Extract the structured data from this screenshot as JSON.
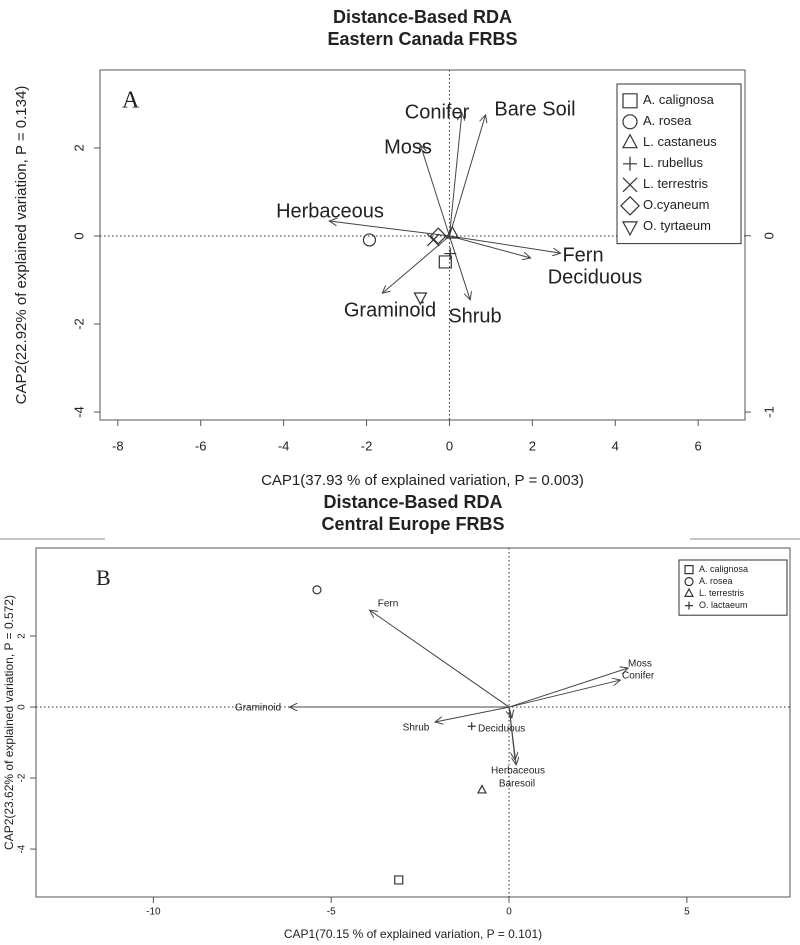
{
  "chart_data": [
    {
      "type": "biplot",
      "title": "Distance-Based RDA",
      "subtitle": "Eastern Canada FRBS",
      "panel": "A",
      "xlabel": "CAP1(37.93 % of explained variation, P = 0.003)",
      "ylabel": "CAP2(22.92% of explained variation, P = 0.134)",
      "xlim": [
        -8.43,
        7.13
      ],
      "ylim": [
        -4.18,
        3.77
      ],
      "y2lim": [
        -1.045,
        0.94
      ],
      "xticks": [
        -8,
        -6,
        -4,
        -2,
        0,
        2,
        4,
        6
      ],
      "yticks": [
        -4,
        -2,
        0,
        2
      ],
      "y2ticks": [
        -1,
        0
      ],
      "points": [
        {
          "name": "A. calignosa",
          "marker": "square",
          "x": -0.1,
          "y": -0.59
        },
        {
          "name": "A. rosea",
          "marker": "circle",
          "x": -1.93,
          "y": -0.09
        },
        {
          "name": "L. castaneus",
          "marker": "triangle",
          "x": 0.07,
          "y": 0.05
        },
        {
          "name": "L. rubellus",
          "marker": "plus",
          "x": 0.02,
          "y": -0.4
        },
        {
          "name": "L. terrestris",
          "marker": "cross",
          "x": -0.39,
          "y": -0.09
        },
        {
          "name": "O.cyaneum",
          "marker": "diamond",
          "x": -0.27,
          "y": 0
        },
        {
          "name": "O. tyrtaeum",
          "marker": "triangle-down",
          "x": -0.7,
          "y": -1.39
        }
      ],
      "vectors": [
        {
          "label": "Conifer",
          "x": 0.3,
          "y": 2.8
        },
        {
          "label": "Bare Soil",
          "x": 0.87,
          "y": 2.75
        },
        {
          "label": "Moss",
          "x": -0.7,
          "y": 2.07
        },
        {
          "label": "Herbaceous",
          "x": -2.9,
          "y": 0.34
        },
        {
          "label": "Fern",
          "x": 2.68,
          "y": -0.39
        },
        {
          "label": "Deciduous",
          "x": 1.96,
          "y": -0.5
        },
        {
          "label": "Graminoid",
          "x": -1.62,
          "y": -1.3
        },
        {
          "label": "Shrub",
          "x": 0.5,
          "y": -1.45
        }
      ]
    },
    {
      "type": "biplot",
      "title": "Distance-Based RDA",
      "subtitle": "Central Europe FRBS",
      "panel": "B",
      "xlabel": "CAP1(70.15 % of explained variation, P = 0.101)",
      "ylabel": "CAP2(23.62% of explained variation, P = 0.572)",
      "xlim": [
        -13.3,
        7.9
      ],
      "ylim": [
        -5.35,
        4.48
      ],
      "xticks": [
        -10,
        -5,
        0,
        5
      ],
      "yticks": [
        -4,
        -2,
        0,
        2
      ],
      "points": [
        {
          "name": "A. calignosa",
          "marker": "square",
          "x": -3.1,
          "y": -4.87
        },
        {
          "name": "A. rosea",
          "marker": "circle",
          "x": -5.4,
          "y": 3.3
        },
        {
          "name": "L. terrestris",
          "marker": "triangle",
          "x": -0.76,
          "y": -2.34
        },
        {
          "name": "O. lactaeum",
          "marker": "plus",
          "x": -1.05,
          "y": -0.54
        }
      ],
      "vectors": [
        {
          "label": "Fern",
          "x": -3.92,
          "y": 2.73
        },
        {
          "label": "Moss",
          "x": 3.35,
          "y": 1.1
        },
        {
          "label": "Conifer",
          "x": 3.13,
          "y": 0.76
        },
        {
          "label": "Graminoid",
          "x": -6.17,
          "y": 0
        },
        {
          "label": "Shrub",
          "x": -2.08,
          "y": -0.42
        },
        {
          "label": "Deciduous",
          "x": 0.08,
          "y": -0.31
        },
        {
          "label": "Herbaceous",
          "x": 0.17,
          "y": -1.49
        },
        {
          "label": "Baresoil",
          "x": 0.2,
          "y": -1.63
        }
      ]
    }
  ]
}
